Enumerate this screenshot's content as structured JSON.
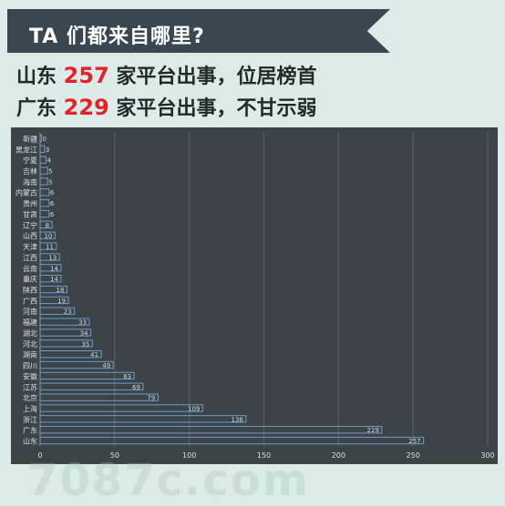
{
  "header": {
    "title": "TA 们都来自哪里?",
    "line1": {
      "prefix": "山东 ",
      "number": "257",
      "suffix": " 家平台出事，位居榜首"
    },
    "line2": {
      "prefix": "广东 ",
      "number": "229",
      "suffix": " 家平台出事，不甘示弱"
    }
  },
  "watermark": "7087c.com",
  "colors": {
    "banner": "#3a4650",
    "accent_red": "#e0242a",
    "bar_stroke": "#6e9cc9",
    "chart_bg": "#3c4448"
  },
  "chart_data": {
    "type": "bar",
    "orientation": "horizontal",
    "categories": [
      "新疆",
      "黑龙江",
      "宁夏",
      "吉林",
      "海南",
      "内蒙古",
      "贵州",
      "甘肃",
      "辽宁",
      "山西",
      "天津",
      "江西",
      "云南",
      "重庆",
      "陕西",
      "广西",
      "河南",
      "福建",
      "湖北",
      "河北",
      "湖南",
      "四川",
      "安徽",
      "江苏",
      "北京",
      "上海",
      "浙江",
      "广东",
      "山东"
    ],
    "values": [
      0,
      3,
      4,
      5,
      5,
      6,
      6,
      6,
      8,
      10,
      11,
      13,
      14,
      14,
      18,
      19,
      23,
      33,
      34,
      35,
      41,
      49,
      63,
      69,
      79,
      109,
      138,
      229,
      257
    ],
    "xlim": [
      0,
      300
    ],
    "xticks": [
      0,
      50,
      100,
      150,
      200,
      250,
      300
    ],
    "grid": true,
    "title": "",
    "xlabel": "",
    "ylabel": ""
  }
}
